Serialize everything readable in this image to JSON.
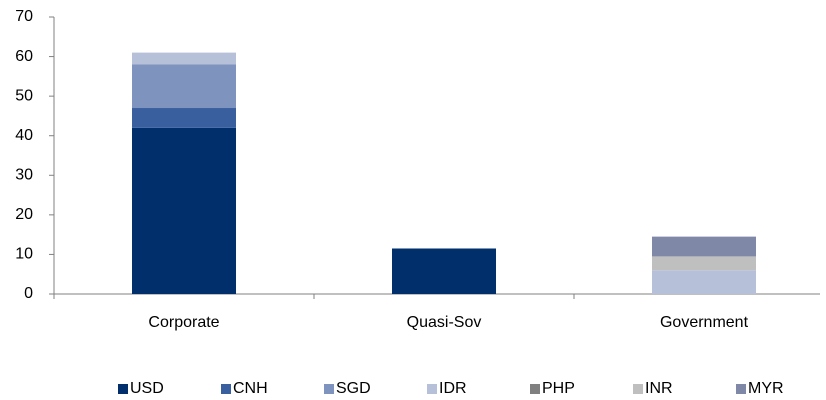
{
  "chart_data": {
    "type": "stacked_bar",
    "categories": [
      "Corporate",
      "Quasi-Sov",
      "Government"
    ],
    "series": [
      {
        "name": "USD",
        "color": "#002f6c",
        "values": [
          42,
          11.5,
          0
        ]
      },
      {
        "name": "CNH",
        "color": "#3a5f9e",
        "values": [
          5,
          0,
          0
        ]
      },
      {
        "name": "SGD",
        "color": "#7e93bd",
        "values": [
          11,
          0,
          0
        ]
      },
      {
        "name": "IDR",
        "color": "#b7c0d9",
        "values": [
          3,
          0,
          6
        ]
      },
      {
        "name": "PHP",
        "color": "#808080",
        "values": [
          0,
          0,
          0
        ]
      },
      {
        "name": "INR",
        "color": "#bfbfbf",
        "values": [
          0,
          0,
          3.5
        ]
      },
      {
        "name": "MYR",
        "color": "#8088a8",
        "values": [
          0,
          0,
          5
        ]
      }
    ],
    "ylim": [
      0,
      70
    ],
    "yticks": [
      0,
      10,
      20,
      30,
      40,
      50,
      60,
      70
    ],
    "legend": "bottom"
  }
}
